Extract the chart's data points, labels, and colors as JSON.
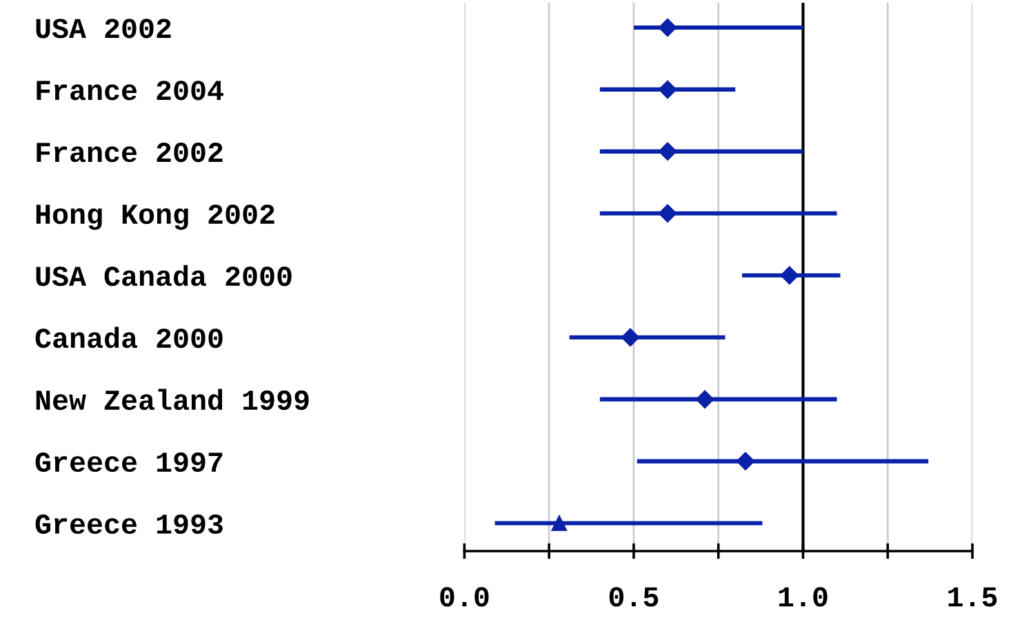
{
  "chart_data": {
    "type": "scatter",
    "orientation": "horizontal",
    "categories": [
      "USA 2002",
      "France 2004",
      "France 2002",
      "Hong Kong 2002",
      "USA Canada 2000",
      "Canada 2000",
      "New Zealand 1999",
      "Greece 1997",
      "Greece 1993"
    ],
    "series": [
      {
        "color": "#0a22a8",
        "marker": "diamond",
        "values": [
          0.6,
          0.6,
          0.6,
          0.6,
          0.96,
          0.49,
          0.71,
          0.83,
          null
        ],
        "errors": [
          [
            0.5,
            1.0
          ],
          [
            0.4,
            0.8
          ],
          [
            0.4,
            1.0
          ],
          [
            0.4,
            1.1
          ],
          [
            0.82,
            1.11
          ],
          [
            0.31,
            0.77
          ],
          [
            0.4,
            1.1
          ],
          [
            0.51,
            1.37
          ],
          null
        ]
      },
      {
        "color": "#0a22a8",
        "marker": "triangle",
        "values": [
          null,
          null,
          null,
          null,
          null,
          null,
          null,
          null,
          0.28
        ],
        "errors": [
          null,
          null,
          null,
          null,
          null,
          null,
          null,
          null,
          [
            0.09,
            0.88
          ]
        ]
      }
    ],
    "xlim": [
      0,
      1.5
    ],
    "xticks": [
      {
        "value": 0,
        "label": "0.0"
      },
      {
        "value": 0.25,
        "label": null
      },
      {
        "value": 0.5,
        "label": "0.5"
      },
      {
        "value": 0.75,
        "label": null
      },
      {
        "value": 1,
        "label": "1.0"
      },
      {
        "value": 1.25,
        "label": null
      },
      {
        "value": 1.5,
        "label": "1.5"
      }
    ],
    "grid": "x",
    "ref_lines": [
      {
        "axis": "x",
        "value": 1,
        "color": "#000000"
      }
    ]
  }
}
